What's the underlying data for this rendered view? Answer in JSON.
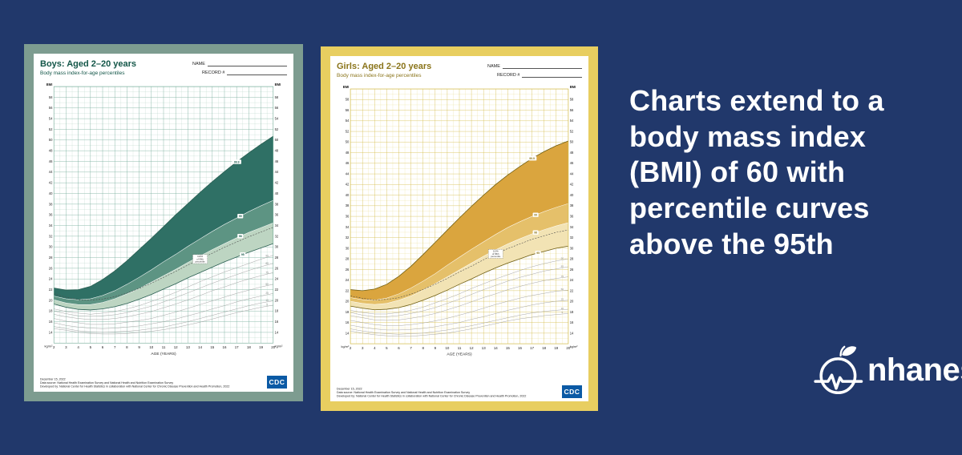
{
  "colors": {
    "background": "#21386b",
    "cdc_blue": "#0b5aa5"
  },
  "headline": {
    "text": "Charts extend to a body mass index (BMI) of 60 with percentile curves above the 95th"
  },
  "logo": {
    "text": "nhanes"
  },
  "chart_data": [
    {
      "type": "area",
      "title": "Boys: Aged 2–20 years",
      "subtitle": "Body mass index-for-age percentiles",
      "name_label": "NAME",
      "record_label": "RECORD #",
      "xlabel": "AGE (YEARS)",
      "ylabel_top": "BMI",
      "ylabel_bottom": "kg/m²",
      "xlim": [
        2,
        20
      ],
      "ylim": [
        12,
        60
      ],
      "xticks": [
        2,
        3,
        4,
        5,
        6,
        7,
        8,
        9,
        10,
        11,
        12,
        13,
        14,
        15,
        16,
        17,
        18,
        19,
        20
      ],
      "ytick_min": 14,
      "ytick_max": 58,
      "ytick_step": 2,
      "x": [
        2,
        3,
        4,
        5,
        6,
        7,
        8,
        9,
        10,
        11,
        12,
        13,
        14,
        15,
        16,
        17,
        18,
        19,
        20
      ],
      "percentiles": {
        "P5": [
          14.7,
          14.4,
          14.0,
          13.8,
          13.7,
          13.7,
          13.8,
          14.0,
          14.2,
          14.5,
          14.9,
          15.4,
          15.9,
          16.5,
          17.1,
          17.7,
          18.2,
          18.7,
          19.1
        ],
        "P10": [
          15.1,
          14.7,
          14.3,
          14.1,
          14.0,
          14.1,
          14.2,
          14.4,
          14.7,
          15.0,
          15.5,
          16.0,
          16.6,
          17.2,
          17.8,
          18.4,
          19.0,
          19.5,
          19.9
        ],
        "P25": [
          15.8,
          15.3,
          15.0,
          14.8,
          14.7,
          14.8,
          15.0,
          15.2,
          15.6,
          16.0,
          16.5,
          17.1,
          17.7,
          18.4,
          19.0,
          19.7,
          20.3,
          20.8,
          21.3
        ],
        "P50": [
          16.6,
          16.1,
          15.8,
          15.5,
          15.5,
          15.6,
          15.9,
          16.2,
          16.6,
          17.2,
          17.8,
          18.5,
          19.2,
          19.9,
          20.6,
          21.3,
          21.9,
          22.5,
          23.0
        ],
        "P75": [
          17.4,
          16.9,
          16.6,
          16.4,
          16.4,
          16.6,
          16.9,
          17.4,
          17.9,
          18.6,
          19.3,
          20.1,
          20.9,
          21.8,
          22.5,
          23.3,
          24.0,
          24.6,
          25.2
        ],
        "P85": [
          18.0,
          17.5,
          17.1,
          17.0,
          17.1,
          17.3,
          17.7,
          18.3,
          18.9,
          19.7,
          20.5,
          21.4,
          22.3,
          23.2,
          24.0,
          24.8,
          25.6,
          26.3,
          26.9
        ],
        "P90": [
          18.4,
          17.9,
          17.6,
          17.4,
          17.6,
          17.9,
          18.4,
          19.0,
          19.8,
          20.6,
          21.5,
          22.5,
          23.5,
          24.4,
          25.3,
          26.1,
          26.9,
          27.7,
          28.4
        ],
        "P95": [
          19.3,
          18.7,
          18.3,
          18.2,
          18.4,
          18.8,
          19.4,
          20.2,
          21.1,
          22.1,
          23.1,
          24.2,
          25.2,
          26.2,
          27.2,
          28.1,
          29.0,
          29.8,
          30.6
        ],
        "P98": [
          20.1,
          19.5,
          19.2,
          19.2,
          19.6,
          20.3,
          21.2,
          22.2,
          23.4,
          24.6,
          25.8,
          27.1,
          28.3,
          29.5,
          30.6,
          31.7,
          32.7,
          33.6,
          34.5
        ],
        "P99": [
          20.8,
          20.3,
          20.1,
          20.3,
          20.9,
          21.8,
          23.0,
          24.3,
          25.7,
          27.2,
          28.6,
          30.1,
          31.5,
          32.9,
          34.2,
          35.4,
          36.6,
          37.7,
          38.7
        ],
        "P999": [
          22.3,
          21.9,
          22.0,
          22.6,
          23.9,
          25.5,
          27.4,
          29.5,
          31.6,
          33.8,
          36.0,
          38.1,
          40.2,
          42.2,
          44.1,
          45.9,
          47.6,
          49.2,
          50.7
        ]
      },
      "thin": [
        "P5",
        "P10",
        "P25",
        "P50",
        "P75",
        "P85",
        "P90"
      ],
      "top_series": "P999",
      "bands": [
        {
          "upper": "P999",
          "lower": "P99",
          "color": "#2f7065"
        },
        {
          "upper": "P99",
          "lower": "P98",
          "color": "#5d9483"
        },
        {
          "upper": "P98",
          "lower": "P95",
          "color": "#bdd5c2"
        }
      ],
      "band_labels": [
        {
          "text": "99.9",
          "series": "P999",
          "age": 17
        },
        {
          "text": "99",
          "series": "P99",
          "age": 17.3
        },
        {
          "text": "98",
          "series": "P98",
          "age": 17.3
        },
        {
          "text": "95",
          "series": "P95",
          "age": 17.5
        }
      ],
      "small_labels": [
        {
          "text": "90",
          "series": "P90"
        },
        {
          "text": "85",
          "series": "P85"
        },
        {
          "text": "75",
          "series": "P75"
        },
        {
          "text": "50",
          "series": "P50"
        },
        {
          "text": "25",
          "series": "P25"
        },
        {
          "text": "10",
          "series": "P10"
        },
        {
          "text": "5",
          "series": "P5"
        }
      ],
      "small_label_age": 19.5,
      "dashed": {
        "base": "P95",
        "factor": 1.1,
        "label": "110% of 95th percentile"
      },
      "callout": {
        "age": 14,
        "lines": [
          "110%",
          "of 95th",
          "percentile"
        ]
      },
      "footer": {
        "date": "December 15, 2022",
        "source": "Data source: National Health Examination Survey and National Health and Nutrition Examination Survey",
        "developed": "Developed by: National Center for Health Statistics in collaboration with National Center for Chronic Disease Prevention and Health Promotion, 2022"
      },
      "cdc_label": "CDC",
      "theme": {
        "frame": "#7d9c90",
        "grid": "#a8cbbb",
        "grid_major": "#74ac99",
        "title": "#135648",
        "curve": "#2b5f53",
        "thin": "#9b9b9b"
      }
    },
    {
      "type": "area",
      "title": "Girls: Aged 2–20 years",
      "subtitle": "Body mass index-for-age percentiles",
      "name_label": "NAME",
      "record_label": "RECORD #",
      "xlabel": "AGE (YEARS)",
      "ylabel_top": "BMI",
      "ylabel_bottom": "kg/m²",
      "xlim": [
        2,
        20
      ],
      "ylim": [
        12,
        60
      ],
      "xticks": [
        2,
        3,
        4,
        5,
        6,
        7,
        8,
        9,
        10,
        11,
        12,
        13,
        14,
        15,
        16,
        17,
        18,
        19,
        20
      ],
      "ytick_min": 14,
      "ytick_max": 58,
      "ytick_step": 2,
      "x": [
        2,
        3,
        4,
        5,
        6,
        7,
        8,
        9,
        10,
        11,
        12,
        13,
        14,
        15,
        16,
        17,
        18,
        19,
        20
      ],
      "percentiles": {
        "P5": [
          14.4,
          14.0,
          13.7,
          13.5,
          13.4,
          13.4,
          13.6,
          13.8,
          14.0,
          14.4,
          14.8,
          15.3,
          15.8,
          16.3,
          16.7,
          17.0,
          17.3,
          17.5,
          17.7
        ],
        "P10": [
          14.8,
          14.4,
          14.1,
          13.9,
          13.8,
          13.9,
          14.0,
          14.3,
          14.6,
          15.0,
          15.4,
          15.9,
          16.4,
          16.9,
          17.4,
          17.8,
          18.1,
          18.3,
          18.5
        ],
        "P25": [
          15.5,
          15.1,
          14.8,
          14.6,
          14.6,
          14.7,
          14.9,
          15.2,
          15.6,
          16.0,
          16.6,
          17.1,
          17.7,
          18.3,
          18.8,
          19.3,
          19.7,
          20.0,
          20.2
        ],
        "P50": [
          16.4,
          16.0,
          15.6,
          15.4,
          15.4,
          15.6,
          15.9,
          16.3,
          16.8,
          17.4,
          18.0,
          18.7,
          19.4,
          20.0,
          20.6,
          21.1,
          21.5,
          21.9,
          22.1
        ],
        "P75": [
          17.3,
          16.9,
          16.5,
          16.4,
          16.5,
          16.8,
          17.2,
          17.7,
          18.4,
          19.1,
          19.9,
          20.7,
          21.4,
          22.2,
          22.8,
          23.4,
          23.9,
          24.3,
          24.6
        ],
        "P85": [
          17.9,
          17.4,
          17.1,
          17.1,
          17.3,
          17.7,
          18.2,
          18.8,
          19.6,
          20.4,
          21.3,
          22.2,
          23.0,
          23.8,
          24.5,
          25.1,
          25.7,
          26.1,
          26.5
        ],
        "P90": [
          18.3,
          17.9,
          17.6,
          17.6,
          17.9,
          18.3,
          18.9,
          19.7,
          20.5,
          21.4,
          22.4,
          23.3,
          24.2,
          25.0,
          25.8,
          26.5,
          27.1,
          27.6,
          28.0
        ],
        "P95": [
          19.1,
          18.7,
          18.4,
          18.5,
          18.8,
          19.4,
          20.2,
          21.1,
          22.1,
          23.2,
          24.2,
          25.3,
          26.3,
          27.2,
          28.0,
          28.8,
          29.4,
          30.0,
          30.4
        ],
        "P98": [
          20.0,
          19.6,
          19.4,
          19.6,
          20.2,
          21.0,
          22.1,
          23.3,
          24.6,
          25.9,
          27.2,
          28.5,
          29.7,
          30.8,
          31.8,
          32.7,
          33.5,
          34.2,
          34.8
        ],
        "P99": [
          20.7,
          20.3,
          20.2,
          20.6,
          21.4,
          22.5,
          23.8,
          25.2,
          26.8,
          28.3,
          29.8,
          31.2,
          32.6,
          33.9,
          35.0,
          36.0,
          36.9,
          37.7,
          38.4
        ],
        "P999": [
          22.2,
          22.0,
          22.3,
          23.2,
          24.7,
          26.6,
          28.8,
          31.1,
          33.4,
          35.7,
          37.9,
          40.0,
          42.0,
          43.8,
          45.4,
          46.9,
          48.2,
          49.3,
          50.2
        ]
      },
      "thin": [
        "P5",
        "P10",
        "P25",
        "P50",
        "P75",
        "P85",
        "P90"
      ],
      "top_series": "P999",
      "bands": [
        {
          "upper": "P999",
          "lower": "P99",
          "color": "#daa53e"
        },
        {
          "upper": "P99",
          "lower": "P98",
          "color": "#e5c06a"
        },
        {
          "upper": "P98",
          "lower": "P95",
          "color": "#f2e3b4"
        }
      ],
      "band_labels": [
        {
          "text": "99.9",
          "series": "P999",
          "age": 17
        },
        {
          "text": "99",
          "series": "P99",
          "age": 17.3
        },
        {
          "text": "98",
          "series": "P98",
          "age": 17.3
        },
        {
          "text": "95",
          "series": "P95",
          "age": 17.5
        }
      ],
      "small_labels": [
        {
          "text": "90",
          "series": "P90"
        },
        {
          "text": "85",
          "series": "P85"
        },
        {
          "text": "75",
          "series": "P75"
        },
        {
          "text": "50",
          "series": "P50"
        },
        {
          "text": "25",
          "series": "P25"
        },
        {
          "text": "10",
          "series": "P10"
        },
        {
          "text": "5",
          "series": "P5"
        }
      ],
      "small_label_age": 19.5,
      "dashed": {
        "base": "P95",
        "factor": 1.1,
        "label": "110% of 95th percentile"
      },
      "callout": {
        "age": 14,
        "lines": [
          "110%",
          "of 95th",
          "percentile"
        ]
      },
      "footer": {
        "date": "December 15, 2022",
        "source": "Data source: National Health Examination Survey and National Health and Nutrition Examination Survey",
        "developed": "Developed by: National Center for Health Statistics in collaboration with National Center for Chronic Disease Prevention and Health Promotion, 2022"
      },
      "cdc_label": "CDC",
      "theme": {
        "frame": "#e8ce60",
        "grid": "#e7d87f",
        "grid_major": "#d3bc49",
        "title": "#8a741a",
        "curve": "#6e5d12",
        "thin": "#9b9b9b"
      }
    }
  ]
}
